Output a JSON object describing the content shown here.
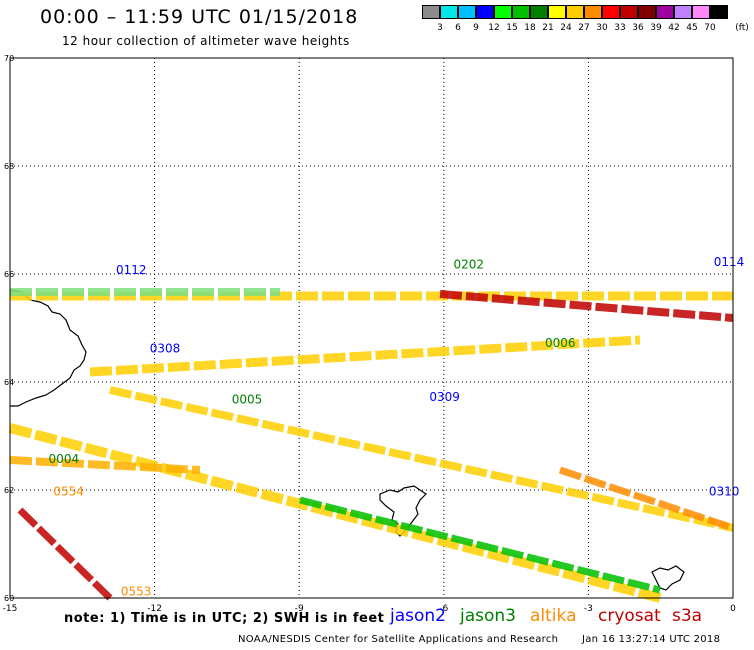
{
  "header": {
    "title": "00:00 – 11:59 UTC 01/15/2018",
    "subtitle": "12 hour collection of altimeter wave heights"
  },
  "color_scale": {
    "unit": "(ft)",
    "bins": [
      {
        "label": "3",
        "color": "#8c8c8c"
      },
      {
        "label": "6",
        "color": "#00e5e5"
      },
      {
        "label": "9",
        "color": "#00bfff"
      },
      {
        "label": "12",
        "color": "#0000ff"
      },
      {
        "label": "15",
        "color": "#00ff00"
      },
      {
        "label": "18",
        "color": "#00c000"
      },
      {
        "label": "21",
        "color": "#008000"
      },
      {
        "label": "24",
        "color": "#ffff00"
      },
      {
        "label": "27",
        "color": "#ffcc00"
      },
      {
        "label": "30",
        "color": "#ff8c00"
      },
      {
        "label": "33",
        "color": "#ff0000"
      },
      {
        "label": "36",
        "color": "#c00000"
      },
      {
        "label": "39",
        "color": "#800000"
      },
      {
        "label": "42",
        "color": "#a000a0"
      },
      {
        "label": "45",
        "color": "#c080ff"
      },
      {
        "label": "70",
        "color": "#ff88ff"
      },
      {
        "label": "",
        "color": "#000000"
      }
    ]
  },
  "map": {
    "lon_ticks": [
      "-15",
      "-12",
      "-9",
      "-6",
      "-3",
      "0"
    ],
    "lat_ticks": [
      "70",
      "68",
      "66",
      "64",
      "62",
      "60"
    ],
    "lon_range": [
      -15,
      0
    ],
    "lat_range": [
      60,
      70
    ],
    "grid": "dotted",
    "time_labels": [
      {
        "text": "0112",
        "color": "#0000ff",
        "lon": -12.8,
        "lat": 66.0
      },
      {
        "text": "0308",
        "color": "#0000ff",
        "lon": -12.1,
        "lat": 64.55
      },
      {
        "text": "0309",
        "color": "#0000ff",
        "lon": -6.3,
        "lat": 63.65
      },
      {
        "text": "0310",
        "color": "#0000ff",
        "lon": -0.5,
        "lat": 61.9
      },
      {
        "text": "0114",
        "color": "#0000ff",
        "lon": -0.4,
        "lat": 66.15
      },
      {
        "text": "0202",
        "color": "#008000",
        "lon": -5.8,
        "lat": 66.1
      },
      {
        "text": "0006",
        "color": "#008000",
        "lon": -3.9,
        "lat": 64.65
      },
      {
        "text": "0005",
        "color": "#008000",
        "lon": -10.4,
        "lat": 63.6
      },
      {
        "text": "0004",
        "color": "#008000",
        "lon": -14.2,
        "lat": 62.5
      },
      {
        "text": "0554",
        "color": "#ff8c00",
        "lon": -14.1,
        "lat": 61.9
      },
      {
        "text": "0553",
        "color": "#ff8c00",
        "lon": -12.7,
        "lat": 60.05
      }
    ]
  },
  "footer": {
    "note": "note: 1) Time is in UTC; 2) SWH is in feet",
    "legend": [
      {
        "name": "jason2",
        "color": "#0000ff"
      },
      {
        "name": "jason3",
        "color": "#008000"
      },
      {
        "name": "altika",
        "color": "#ff8c00"
      },
      {
        "name": "cryosat",
        "color": "#c00000"
      },
      {
        "name": "s3a",
        "color": "#c00000"
      }
    ],
    "credit": "NOAA/NESDIS Center for Satellite Applications and Research",
    "generated": "Jan 16 13:27:14 UTC 2018"
  }
}
